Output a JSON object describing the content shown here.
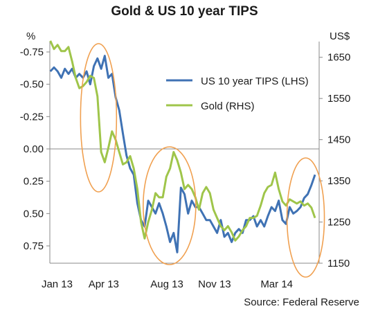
{
  "chart_data": {
    "type": "line",
    "title": "Gold & US 10 year TIPS",
    "left_axis_unit": "%",
    "right_axis_unit": "US$",
    "x_tick_labels": [
      "Jan 13",
      "Apr 13",
      "Aug 13",
      "Nov 13",
      "Mar 14"
    ],
    "left_axis": {
      "ticks": [
        "-0.75",
        "-0.50",
        "-0.25",
        "0.00",
        "0.25",
        "0.50",
        "0.75"
      ],
      "range": [
        -0.75,
        0.75
      ],
      "inverted": true
    },
    "right_axis": {
      "ticks": [
        "1650",
        "1550",
        "1450",
        "1350",
        "1250",
        "1150"
      ],
      "range": [
        1150,
        1700
      ]
    },
    "legend_position": "top-right",
    "grid": false,
    "series": [
      {
        "name": "US 10 year TIPS (LHS)",
        "axis": "left",
        "color": "#3f72b4",
        "x": [
          "2013-01-02",
          "2013-01-09",
          "2013-01-16",
          "2013-01-23",
          "2013-01-30",
          "2013-02-06",
          "2013-02-13",
          "2013-02-20",
          "2013-02-27",
          "2013-03-06",
          "2013-03-13",
          "2013-03-20",
          "2013-03-27",
          "2013-04-03",
          "2013-04-10",
          "2013-04-17",
          "2013-04-24",
          "2013-05-01",
          "2013-05-08",
          "2013-05-15",
          "2013-05-22",
          "2013-05-29",
          "2013-06-05",
          "2013-06-12",
          "2013-06-19",
          "2013-06-26",
          "2013-07-03",
          "2013-07-10",
          "2013-07-17",
          "2013-07-24",
          "2013-07-31",
          "2013-08-07",
          "2013-08-14",
          "2013-08-21",
          "2013-08-28",
          "2013-09-04",
          "2013-09-11",
          "2013-09-18",
          "2013-09-25",
          "2013-10-02",
          "2013-10-09",
          "2013-10-16",
          "2013-10-23",
          "2013-10-30",
          "2013-11-06",
          "2013-11-13",
          "2013-11-20",
          "2013-11-27",
          "2013-12-04",
          "2013-12-11",
          "2013-12-18",
          "2013-12-25",
          "2014-01-01",
          "2014-01-08",
          "2014-01-15",
          "2014-01-22",
          "2014-01-29",
          "2014-02-05",
          "2014-02-12",
          "2014-02-19",
          "2014-02-26",
          "2014-03-05",
          "2014-03-12",
          "2014-03-19",
          "2014-03-26",
          "2014-04-02",
          "2014-04-09",
          "2014-04-16",
          "2014-04-23",
          "2014-04-30",
          "2014-05-07",
          "2014-05-14",
          "2014-05-21",
          "2014-05-28"
        ],
        "values": [
          -0.6,
          -0.63,
          -0.6,
          -0.55,
          -0.62,
          -0.58,
          -0.62,
          -0.55,
          -0.58,
          -0.55,
          -0.6,
          -0.5,
          -0.64,
          -0.7,
          -0.62,
          -0.72,
          -0.55,
          -0.58,
          -0.4,
          -0.3,
          -0.12,
          0.05,
          0.15,
          0.2,
          0.42,
          0.55,
          0.6,
          0.4,
          0.45,
          0.5,
          0.42,
          0.5,
          0.6,
          0.72,
          0.65,
          0.8,
          0.3,
          0.35,
          0.5,
          0.4,
          0.45,
          0.45,
          0.5,
          0.55,
          0.55,
          0.6,
          0.65,
          0.55,
          0.68,
          0.65,
          0.72,
          0.65,
          0.62,
          0.65,
          0.55,
          0.55,
          0.52,
          0.6,
          0.55,
          0.6,
          0.52,
          0.45,
          0.48,
          0.4,
          0.55,
          0.58,
          0.45,
          0.5,
          0.48,
          0.45,
          0.38,
          0.35,
          0.28,
          0.2
        ]
      },
      {
        "name": "Gold (RHS)",
        "axis": "right",
        "color": "#9fc54a",
        "x": [
          "2013-01-02",
          "2013-01-09",
          "2013-01-16",
          "2013-01-23",
          "2013-01-30",
          "2013-02-06",
          "2013-02-13",
          "2013-02-20",
          "2013-02-27",
          "2013-03-06",
          "2013-03-13",
          "2013-03-20",
          "2013-03-27",
          "2013-04-03",
          "2013-04-10",
          "2013-04-17",
          "2013-04-24",
          "2013-05-01",
          "2013-05-08",
          "2013-05-15",
          "2013-05-22",
          "2013-05-29",
          "2013-06-05",
          "2013-06-12",
          "2013-06-19",
          "2013-06-26",
          "2013-07-03",
          "2013-07-10",
          "2013-07-17",
          "2013-07-24",
          "2013-07-31",
          "2013-08-07",
          "2013-08-14",
          "2013-08-21",
          "2013-08-28",
          "2013-09-04",
          "2013-09-11",
          "2013-09-18",
          "2013-09-25",
          "2013-10-02",
          "2013-10-09",
          "2013-10-16",
          "2013-10-23",
          "2013-10-30",
          "2013-11-06",
          "2013-11-13",
          "2013-11-20",
          "2013-11-27",
          "2013-12-04",
          "2013-12-11",
          "2013-12-18",
          "2013-12-25",
          "2014-01-01",
          "2014-01-08",
          "2014-01-15",
          "2014-01-22",
          "2014-01-29",
          "2014-02-05",
          "2014-02-12",
          "2014-02-19",
          "2014-02-26",
          "2014-03-05",
          "2014-03-12",
          "2014-03-19",
          "2014-03-26",
          "2014-04-02",
          "2014-04-09",
          "2014-04-16",
          "2014-04-23",
          "2014-04-30",
          "2014-05-07",
          "2014-05-14",
          "2014-05-21",
          "2014-05-28"
        ],
        "values": [
          1690,
          1670,
          1680,
          1665,
          1665,
          1675,
          1640,
          1600,
          1575,
          1580,
          1590,
          1605,
          1600,
          1555,
          1420,
          1395,
          1430,
          1470,
          1450,
          1420,
          1390,
          1395,
          1410,
          1380,
          1330,
          1250,
          1210,
          1250,
          1280,
          1320,
          1310,
          1310,
          1360,
          1380,
          1420,
          1400,
          1370,
          1330,
          1340,
          1330,
          1310,
          1280,
          1320,
          1335,
          1320,
          1280,
          1260,
          1240,
          1230,
          1240,
          1225,
          1205,
          1215,
          1230,
          1240,
          1260,
          1260,
          1265,
          1290,
          1320,
          1335,
          1340,
          1370,
          1330,
          1300,
          1290,
          1305,
          1300,
          1295,
          1300,
          1290,
          1295,
          1285,
          1260
        ]
      }
    ],
    "highlight_ellipses": 4,
    "source": "Source: Federal Reserve"
  }
}
